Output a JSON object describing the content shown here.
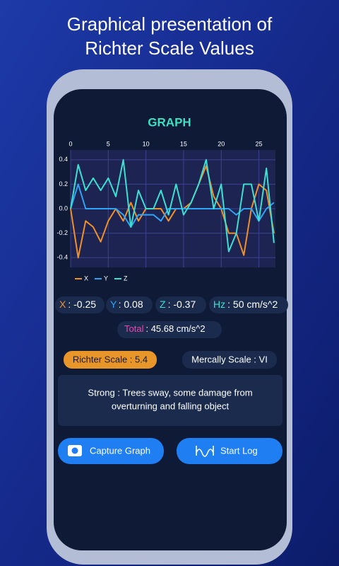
{
  "header": {
    "title": [
      "Graphical presentation of",
      "Richter Scale Values"
    ]
  },
  "screen": {
    "heading": "GRAPH",
    "readings": [
      {
        "label": "X",
        "value": ": -0.25",
        "color": "#f0902a"
      },
      {
        "label": "Y",
        "value": ": 0.08",
        "color": "#2fa3f5"
      },
      {
        "label": "Z",
        "value": ": -0.37",
        "color": "#3de0d0"
      },
      {
        "label": "Hz",
        "value": ": 50 cm/s^2",
        "color": "#3de0d0"
      }
    ],
    "total": {
      "label": "Total",
      "value": ": 45.68 cm/s^2",
      "color": "#e848b0"
    },
    "richter": "Richter Scale : 5.4",
    "mercally": "Mercally Scale : VI",
    "description": [
      "Strong : Trees sway, some damage from",
      "overturning and falling object"
    ],
    "buttons": [
      "Capture Graph",
      "Start Log"
    ]
  },
  "chart_data": {
    "type": "line",
    "x": [
      0,
      1,
      2,
      3,
      4,
      5,
      6,
      7,
      8,
      9,
      10,
      11,
      12,
      13,
      14,
      15,
      16,
      17,
      18,
      19,
      20,
      21,
      22,
      23,
      24,
      25,
      26,
      27
    ],
    "series": [
      {
        "name": "X",
        "color": "#f0902a",
        "values": [
          0,
          -0.4,
          -0.1,
          -0.15,
          -0.27,
          -0.1,
          0,
          -0.1,
          0.05,
          -0.1,
          0,
          0,
          0,
          -0.1,
          0,
          0,
          0.05,
          0.2,
          0.35,
          0.1,
          0,
          -0.2,
          -0.2,
          -0.38,
          0,
          0.2,
          0.15,
          -0.2
        ]
      },
      {
        "name": "Y",
        "color": "#2fa3f5",
        "values": [
          0,
          0.2,
          0,
          0,
          0,
          0,
          0,
          -0.05,
          -0.15,
          -0.05,
          -0.05,
          -0.05,
          -0.1,
          0,
          0,
          0,
          0,
          0,
          0,
          0,
          0,
          0,
          -0.05,
          0,
          0,
          -0.1,
          0,
          0.05
        ]
      },
      {
        "name": "Z",
        "color": "#3de0d0",
        "values": [
          0,
          0.36,
          0.15,
          0.25,
          0.15,
          0.25,
          0.1,
          0.4,
          -0.15,
          0.15,
          0,
          0,
          0.15,
          -0.05,
          0.2,
          -0.05,
          0.05,
          0.2,
          0.4,
          0,
          0.2,
          -0.35,
          -0.2,
          0.2,
          0.2,
          -0.1,
          0.33,
          -0.28
        ]
      }
    ],
    "xlim": [
      0,
      27.2
    ],
    "xticks": [
      0,
      5,
      10,
      15,
      20,
      25
    ],
    "ylim": [
      -0.48,
      0.48
    ],
    "yticks": [
      0.4,
      0.2,
      {
        "value": 0,
        "label": "0.0"
      },
      -0.2,
      -0.4
    ],
    "grid": true
  }
}
